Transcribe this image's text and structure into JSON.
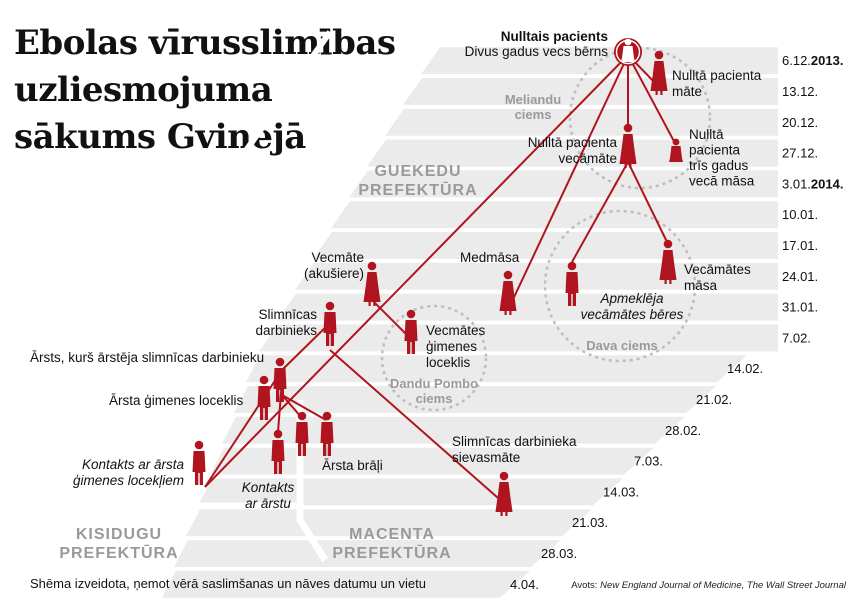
{
  "title": {
    "lines": [
      "Ebolas vīrusslimības",
      "uzliesmojuma",
      "sākums Gvinejā"
    ]
  },
  "footer_note": "Shēma izveidota, ņemot vērā saslimšanas un nāves datumu un vietu",
  "sources": {
    "label": "Avots:",
    "names": "New England Journal of Medicine, The Wall Street Journal"
  },
  "dates": [
    {
      "day": "6.12.",
      "year": "2013."
    },
    {
      "day": "13.12.",
      "year": ""
    },
    {
      "day": "20.12.",
      "year": ""
    },
    {
      "day": "27.12.",
      "year": ""
    },
    {
      "day": "3.01.",
      "year": "2014."
    },
    {
      "day": "10.01.",
      "year": ""
    },
    {
      "day": "17.01.",
      "year": ""
    },
    {
      "day": "24.01.",
      "year": ""
    },
    {
      "day": "31.01.",
      "year": ""
    },
    {
      "day": "7.02.",
      "year": ""
    },
    {
      "day": "14.02.",
      "year": ""
    },
    {
      "day": "21.02.",
      "year": ""
    },
    {
      "day": "28.02.",
      "year": ""
    },
    {
      "day": "7.03.",
      "year": ""
    },
    {
      "day": "14.03.",
      "year": ""
    },
    {
      "day": "21.03.",
      "year": ""
    },
    {
      "day": "28.03.",
      "year": ""
    },
    {
      "day": "4.04.",
      "year": ""
    }
  ],
  "regions": {
    "guekedu": [
      "GUEKEDU",
      "PREFEKTŪRA"
    ],
    "kisidugu": [
      "KISIDUGU",
      "PREFEKTŪRA"
    ],
    "macenta": [
      "MACENTA",
      "PREFEKTŪRA"
    ]
  },
  "villages": {
    "meliandu": [
      "Meliandu",
      "ciems"
    ],
    "dandu_pombo": [
      "Dandu Pombo",
      "ciems"
    ],
    "dava": [
      "Dava ciems"
    ]
  },
  "people": {
    "patient_zero": {
      "title": "Nulltais pacients",
      "subtitle": "Divus gadus vecs bērns"
    },
    "mother": [
      "Nulltā pacienta",
      "māte"
    ],
    "grandmother": [
      "Nulltā pacienta",
      "vecāmāte"
    ],
    "sister": [
      "Nulltā",
      "pacienta",
      "trīs gadus",
      "vecā māsa"
    ],
    "nurse": [
      "Medmāsa"
    ],
    "gm_sister": [
      "Vecāmātes",
      "māsa"
    ],
    "funeral": [
      "Apmeklēja",
      "vecāmātes bēres"
    ],
    "midwife": [
      "Vecmāte",
      "(akušiere)"
    ],
    "midwife_family": [
      "Vecmātes",
      "ģimenes",
      "loceklis"
    ],
    "hospital_worker": [
      "Slimnīcas",
      "darbinieks"
    ],
    "doctor": [
      "Ārsts, kurš ārstēja slimnīcas darbinieku"
    ],
    "doctor_family": [
      "Ārsta ģimenes loceklis"
    ],
    "doctor_brothers": [
      "Ārsta brāļi"
    ],
    "contact_family": [
      "Kontakts ar ārsta",
      "ģimenes locekļiem"
    ],
    "contact_doctor": [
      "Kontakts",
      "ar ārstu"
    ],
    "hospital_wife": [
      "Slimnīcas darbinieka",
      "sievasmāte"
    ]
  },
  "colors": {
    "accent": "#b0141e",
    "band": "#ebebeb",
    "region_text": "#9a9a9a",
    "village_ring": "#bdbdbd"
  }
}
